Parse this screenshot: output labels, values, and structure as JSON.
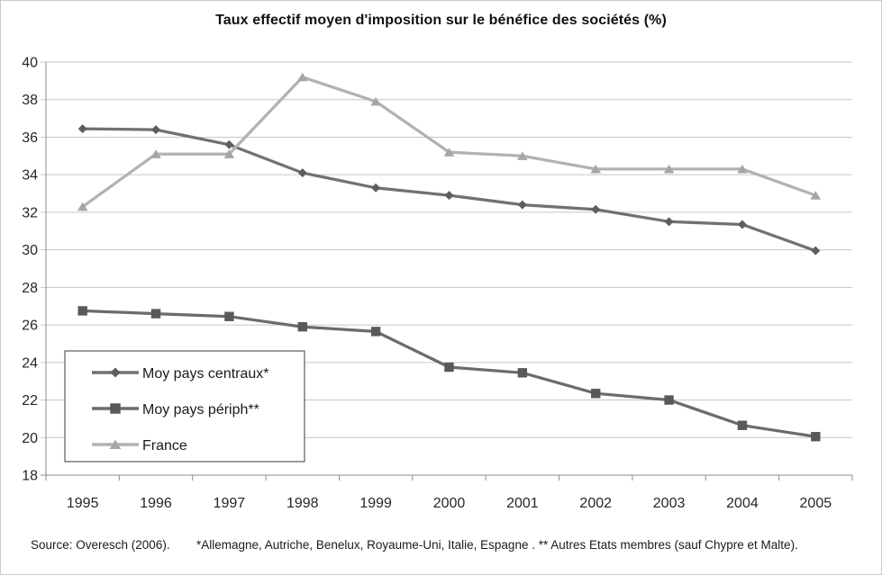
{
  "chart_data": {
    "type": "line",
    "title": "Taux effectif moyen d'imposition sur le bénéfice des sociétés (%)",
    "categories": [
      "1995",
      "1996",
      "1997",
      "1998",
      "1999",
      "2000",
      "2001",
      "2002",
      "2003",
      "2004",
      "2005"
    ],
    "xlabel": "",
    "ylabel": "",
    "ylim": [
      18,
      40
    ],
    "ytick_step": 2,
    "grid": true,
    "legend_position": "inside bottom-left",
    "gridline_color": "#c6c6c6",
    "axis_color": "#8c8c8c",
    "label_color": "#262626",
    "series": [
      {
        "name": "Moy pays centraux*",
        "marker": "diamond",
        "line_color": "#717171",
        "marker_color": "#5e5e5e",
        "values": [
          36.45,
          36.4,
          35.6,
          34.1,
          33.3,
          32.9,
          32.4,
          32.15,
          31.5,
          31.35,
          29.95
        ]
      },
      {
        "name": "Moy pays périph**",
        "marker": "square",
        "line_color": "#6b6b6b",
        "marker_color": "#595959",
        "values": [
          26.75,
          26.6,
          26.45,
          25.9,
          25.65,
          23.75,
          23.45,
          22.35,
          22.0,
          20.65,
          20.05
        ]
      },
      {
        "name": "France",
        "marker": "triangle",
        "line_color": "#b2b2b2",
        "marker_color": "#a6a6a6",
        "values": [
          32.3,
          35.1,
          35.1,
          39.2,
          37.9,
          35.2,
          35.0,
          34.3,
          34.3,
          34.3,
          32.9
        ]
      }
    ]
  },
  "footer": {
    "source": "Source: Overesch (2006).",
    "note": "*Allemagne, Autriche, Benelux, Royaume-Uni, Italie, Espagne . ** Autres Etats membres (sauf Chypre et Malte)."
  }
}
